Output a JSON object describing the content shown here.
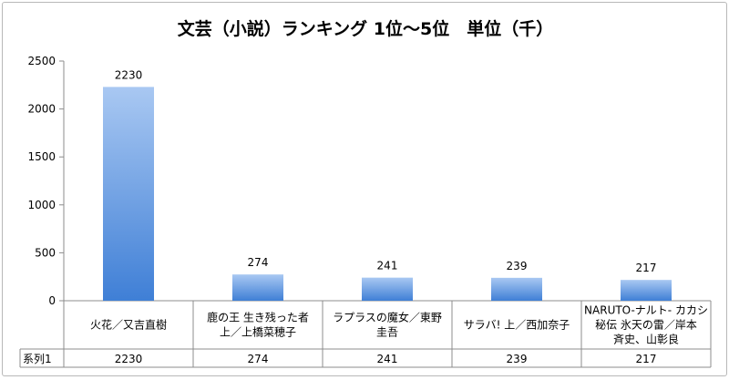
{
  "chart_data": {
    "type": "bar",
    "title": "文芸（小説）ランキング 1位〜5位　単位（千）",
    "categories": [
      [
        "火花／又吉直樹"
      ],
      [
        "鹿の王 生き残った者",
        "上／上橋菜穂子"
      ],
      [
        "ラプラスの魔女／東野",
        "圭吾"
      ],
      [
        "サラバ! 上／西加奈子"
      ],
      [
        "NARUTO-ナルト- カカシ",
        "秘伝 氷天の雷／岸本",
        "斉史、山彰良"
      ]
    ],
    "series": [
      {
        "name": "系列1",
        "values": [
          2230,
          274,
          241,
          239,
          217
        ]
      }
    ],
    "ylim": [
      0,
      2500
    ],
    "yticks": [
      0,
      500,
      1000,
      1500,
      2000,
      2500
    ],
    "grid": false,
    "data_labels": true,
    "data_table": true,
    "colors": {
      "bar_top": "#a9c8f2",
      "bar_bottom": "#3f7fd6",
      "axis": "#8c8c8c"
    }
  }
}
